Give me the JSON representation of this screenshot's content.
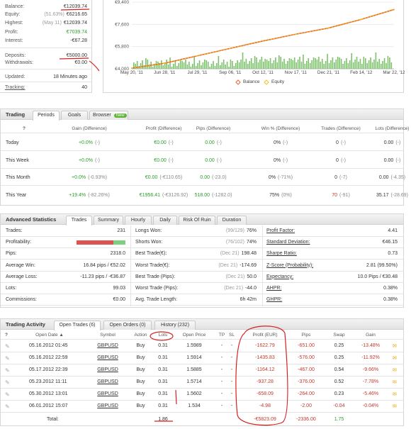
{
  "summary": {
    "balance": {
      "label": "Balance:",
      "value": "€12039.74"
    },
    "equity": {
      "label": "Equity:",
      "note": "(51.63%)",
      "value": "€6216.65"
    },
    "highest": {
      "label": "Highest:",
      "note": "(May 11)",
      "value": "€12039.74"
    },
    "profit": {
      "label": "Profit:",
      "value": "€7039.74"
    },
    "interest": {
      "label": "Interest:",
      "value": "-€67.28"
    },
    "deposits": {
      "label": "Deposits:",
      "value": "€5000.00"
    },
    "withdrawals": {
      "label": "Withdrawals:",
      "value": "€0.00"
    },
    "updated": {
      "label": "Updated:",
      "value": "18 Minutes ago"
    },
    "tracking": {
      "label": "Tracking:",
      "value": "40"
    }
  },
  "growth_chart": {
    "y_ticks": [
      "€9,400",
      "€7,600",
      "€5,800",
      "€4,000"
    ],
    "x_ticks": [
      "May 20, '11",
      "Jun 28, '11",
      "Jul 29, '11",
      "Sep 06, '11",
      "Oct 12, '11",
      "Nov 17, '11",
      "Dec 21, '11",
      "Feb 14, '12",
      "Mar 22, '12"
    ],
    "legend": {
      "balance": "Balance",
      "equity": "Equity"
    },
    "colors": {
      "balance": "#e8622a",
      "equity": "#f0c419",
      "bars": "#7cc26a"
    }
  },
  "chart_data": {
    "type": "line",
    "xlabel": "",
    "ylabel": "",
    "ylim": [
      4000,
      9400
    ],
    "x": [
      "May 20, '11",
      "Jun 28, '11",
      "Jul 29, '11",
      "Sep 06, '11",
      "Oct 12, '11",
      "Nov 17, '11",
      "Dec 21, '11",
      "Feb 14, '12",
      "Mar 22, '12"
    ],
    "series": [
      {
        "name": "Balance",
        "values": [
          4050,
          4450,
          5050,
          5650,
          6250,
          6800,
          7300,
          8000,
          8800
        ]
      },
      {
        "name": "Equity",
        "values": [
          4050,
          4450,
          5050,
          5650,
          6250,
          6800,
          7300,
          8000,
          8800
        ]
      }
    ]
  },
  "trading": {
    "title": "Trading",
    "tabs": [
      "Periods",
      "Goals",
      "Browser"
    ],
    "new_badge": "New",
    "info_icon": "?",
    "columns": [
      "Gain (Difference)",
      "Profit (Difference)",
      "Pips (Difference)",
      "Win % (Difference)",
      "Trades (Difference)",
      "Lots (Difference)"
    ],
    "rows": [
      {
        "period": "Today",
        "gain": "+0.0%",
        "gain_d": "(-)",
        "profit": "€0.00",
        "profit_d": "(-)",
        "pips": "0.00",
        "pips_d": "(-)",
        "win": "0%",
        "win_d": "(-)",
        "trades": "0",
        "trades_d": "(-)",
        "lots": "0.00",
        "lots_d": "(-)"
      },
      {
        "period": "This Week",
        "gain": "+0.0%",
        "gain_d": "(-)",
        "profit": "€0.00",
        "profit_d": "(-)",
        "pips": "0.00",
        "pips_d": "(-)",
        "win": "0%",
        "win_d": "(-)",
        "trades": "0",
        "trades_d": "(-)",
        "lots": "0.00",
        "lots_d": "(-)"
      },
      {
        "period": "This Month",
        "gain": "+0.0%",
        "gain_d": "(-0.93%)",
        "profit": "€0.00",
        "profit_d": "(-€110.65)",
        "pips": "0.00",
        "pips_d": "(-23.0)",
        "win": "0%",
        "win_d": "(-71%)",
        "trades": "0",
        "trades_d": "(-7)",
        "lots": "0.00",
        "lots_d": "(-4.35)"
      },
      {
        "period": "This Year",
        "gain": "+19.4%",
        "gain_d": "(-82.26%)",
        "profit": "€1956.41",
        "profit_d": "(-€3126.92)",
        "pips": "518.00",
        "pips_d": "(-1282.0)",
        "win": "75%",
        "win_d": "(0%)",
        "trades": "70",
        "trades_d": "(-91)",
        "lots": "35.17",
        "lots_d": "(-28.69)"
      }
    ]
  },
  "advanced": {
    "title": "Advanced Statistics",
    "tabs": [
      "Trades",
      "Summary",
      "Hourly",
      "Daily",
      "Risk Of Ruin",
      "Duration"
    ],
    "col1": [
      {
        "label": "Trades:",
        "value": "231"
      },
      {
        "label": "Profitability:",
        "value": ""
      },
      {
        "label": "Pips:",
        "value": "2318.0"
      },
      {
        "label": "Average Win:",
        "value": "16.84 pips / €52.02"
      },
      {
        "label": "Average Loss:",
        "value": "-11.23 pips / -€36.87"
      },
      {
        "label": "Lots:",
        "value": "99.03"
      },
      {
        "label": "Commissions:",
        "value": "€0.00"
      }
    ],
    "profitability": {
      "win_fraction": 0.75,
      "win_color": "#e05252",
      "loss_color": "#7ed07e"
    },
    "col2": [
      {
        "label": "Longs Won:",
        "note": "(99/129)",
        "value": "76%"
      },
      {
        "label": "Shorts Won:",
        "note": "(76/102)",
        "value": "74%"
      },
      {
        "label": "Best Trade(€):",
        "note": "(Dec 21)",
        "value": "198.48"
      },
      {
        "label": "Worst Trade(€):",
        "note": "(Dec 21)",
        "value": "-174.69"
      },
      {
        "label": "Best Trade (Pips):",
        "note": "(Dec 21)",
        "value": "50.0"
      },
      {
        "label": "Worst Trade (Pips):",
        "note": "(Dec 21)",
        "value": "-44.0"
      },
      {
        "label": "Avg. Trade Length:",
        "note": "",
        "value": "6h 42m"
      }
    ],
    "col3": [
      {
        "label": "Profit Factor:",
        "value": "4.41"
      },
      {
        "label": "Standard Deviation:",
        "value": "€46.15"
      },
      {
        "label": "Sharpe Ratio:",
        "value": "0.73"
      },
      {
        "label": "Z-Score (Probability):",
        "value": "2.81 (99.50%)"
      },
      {
        "label": "Expectancy:",
        "value": "10.0 Pips / €30.48"
      },
      {
        "label": "AHPR:",
        "value": "0.38%"
      },
      {
        "label": "GHPR:",
        "value": "0.38%"
      }
    ]
  },
  "activity": {
    "title": "Trading Activity",
    "tabs": [
      "Open Trades (6)",
      "Open Orders (0)",
      "History (232)"
    ],
    "columns": {
      "open_date": "Open Date ▲",
      "symbol": "Symbol",
      "action": "Action",
      "lots": "Lots",
      "open_price": "Open Price",
      "tp": "TP",
      "sl": "SL",
      "profit": "Profit (EUR)",
      "pips": "Pips",
      "swap": "Swap",
      "gain": "Gain"
    },
    "rows": [
      {
        "date": "05.16.2012 01:45",
        "symbol": "GBPUSD",
        "action": "Buy",
        "lots": "0.31",
        "price": "1.5989",
        "tp": "-",
        "sl": "-",
        "profit": "-1622.79",
        "pips": "-651.00",
        "swap": "0.25",
        "gain": "-13.48%"
      },
      {
        "date": "05.16.2012 22:59",
        "symbol": "GBPUSD",
        "action": "Buy",
        "lots": "0.31",
        "price": "1.5914",
        "tp": "-",
        "sl": "-",
        "profit": "-1435.83",
        "pips": "-576.00",
        "swap": "0.25",
        "gain": "-11.92%"
      },
      {
        "date": "05.17.2012 22:39",
        "symbol": "GBPUSD",
        "action": "Buy",
        "lots": "0.31",
        "price": "1.5885",
        "tp": "-",
        "sl": "-",
        "profit": "-1164.12",
        "pips": "-467.00",
        "swap": "0.54",
        "gain": "-9.66%"
      },
      {
        "date": "05.23.2012 11:11",
        "symbol": "GBPUSD",
        "action": "Buy",
        "lots": "0.31",
        "price": "1.5714",
        "tp": "-",
        "sl": "-",
        "profit": "-937.28",
        "pips": "-376.00",
        "swap": "0.52",
        "gain": "-7.78%"
      },
      {
        "date": "05.30.2012 13:01",
        "symbol": "GBPUSD",
        "action": "Buy",
        "lots": "0.31",
        "price": "1.5602",
        "tp": "-",
        "sl": "-",
        "profit": "-658.09",
        "pips": "-264.00",
        "swap": "0.23",
        "gain": "-5.46%"
      },
      {
        "date": "06.01.2012 15:07",
        "symbol": "GBPUSD",
        "action": "Buy",
        "lots": "0.31",
        "price": "1.534",
        "tp": "-",
        "sl": "-",
        "profit": "-4.98",
        "pips": "-2.00",
        "swap": "-0.04",
        "gain": "-0.04%"
      }
    ],
    "total": {
      "label": "Total:",
      "lots": "1.86",
      "profit": "-€5823.09",
      "pips": "-2336.00",
      "swap": "1.75"
    }
  }
}
